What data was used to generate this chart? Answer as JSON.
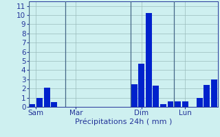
{
  "bar_values": [
    0.3,
    1.0,
    2.1,
    0.5,
    0,
    0,
    0,
    0,
    0,
    0,
    0,
    0,
    0,
    0,
    2.5,
    4.7,
    10.2,
    2.3,
    0.3,
    0.6,
    0.6,
    0.6,
    0,
    1.0,
    2.4,
    3.0
  ],
  "n_bars": 26,
  "xtick_positions": [
    0.5,
    6,
    15,
    21
  ],
  "xtick_labels": [
    "Sam",
    "Mar",
    "Dim",
    "Lun"
  ],
  "vline_positions": [
    0,
    5,
    14,
    20
  ],
  "ylabel_ticks": [
    0,
    1,
    2,
    3,
    4,
    5,
    6,
    7,
    8,
    9,
    10,
    11
  ],
  "ylim": [
    0,
    11.5
  ],
  "xlabel": "Précipitations 24h ( mm )",
  "background_color": "#cef0f0",
  "bar_color": "#0022cc",
  "grid_color": "#99bbbb",
  "vline_color": "#446688",
  "axis_color": "#223399",
  "text_color": "#223399",
  "xlabel_fontsize": 8,
  "tick_fontsize": 7.5
}
